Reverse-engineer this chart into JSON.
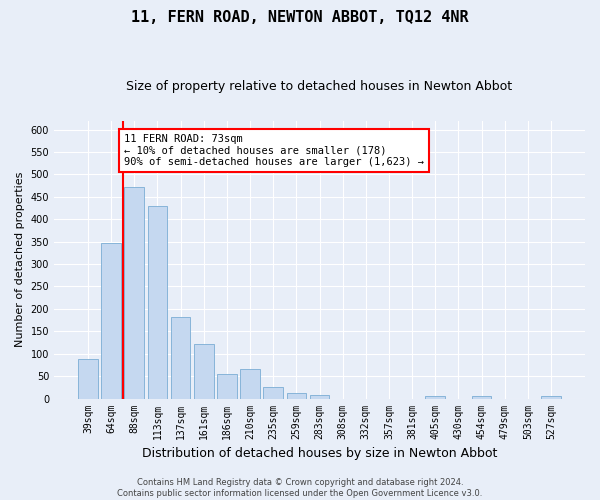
{
  "title": "11, FERN ROAD, NEWTON ABBOT, TQ12 4NR",
  "subtitle": "Size of property relative to detached houses in Newton Abbot",
  "xlabel": "Distribution of detached houses by size in Newton Abbot",
  "ylabel": "Number of detached properties",
  "categories": [
    "39sqm",
    "64sqm",
    "88sqm",
    "113sqm",
    "137sqm",
    "161sqm",
    "186sqm",
    "210sqm",
    "235sqm",
    "259sqm",
    "283sqm",
    "308sqm",
    "332sqm",
    "357sqm",
    "381sqm",
    "405sqm",
    "430sqm",
    "454sqm",
    "479sqm",
    "503sqm",
    "527sqm"
  ],
  "values": [
    88,
    348,
    472,
    430,
    183,
    122,
    55,
    65,
    25,
    12,
    8,
    0,
    0,
    0,
    0,
    5,
    0,
    5,
    0,
    0,
    5
  ],
  "bar_color": "#c5d8f0",
  "bar_edgecolor": "#7aadd4",
  "vline_x": 1.5,
  "vline_color": "red",
  "annotation_text": "11 FERN ROAD: 73sqm\n← 10% of detached houses are smaller (178)\n90% of semi-detached houses are larger (1,623) →",
  "annotation_box_edgecolor": "red",
  "annotation_box_facecolor": "white",
  "ylim": [
    0,
    620
  ],
  "yticks": [
    0,
    50,
    100,
    150,
    200,
    250,
    300,
    350,
    400,
    450,
    500,
    550,
    600
  ],
  "footer": "Contains HM Land Registry data © Crown copyright and database right 2024.\nContains public sector information licensed under the Open Government Licence v3.0.",
  "title_fontsize": 11,
  "subtitle_fontsize": 9,
  "xlabel_fontsize": 9,
  "ylabel_fontsize": 8,
  "tick_fontsize": 7,
  "annotation_fontsize": 7.5,
  "footer_fontsize": 6,
  "background_color": "#e8eef8",
  "plot_bg_color": "#e8eef8",
  "grid_color": "#ffffff"
}
